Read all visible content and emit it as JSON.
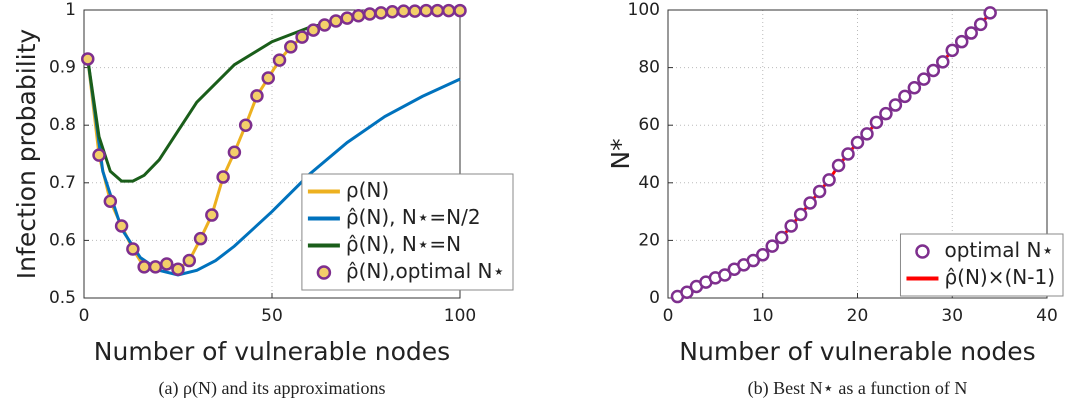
{
  "chart_data": [
    {
      "type": "line",
      "xlabel": "Number of vulnerable nodes",
      "ylabel": "Infection probability",
      "caption": "(a) ρ(N) and its approximations",
      "xlim": [
        0,
        100
      ],
      "ylim": [
        0.5,
        1
      ],
      "xticks": [
        0,
        50,
        100
      ],
      "yticks": [
        0.5,
        0.6,
        0.7,
        0.8,
        0.9,
        1
      ],
      "grid": true,
      "legend": "lower right",
      "series": [
        {
          "name": "ρ(N)",
          "color": "#edb120",
          "style": "line",
          "x": [
            1,
            4,
            7,
            10,
            13,
            16,
            19,
            22,
            25,
            28,
            31,
            34,
            37,
            40,
            43,
            46,
            49,
            52,
            55,
            58,
            61,
            64,
            67,
            70,
            73,
            76,
            79,
            82,
            85,
            88,
            91,
            94,
            97,
            100
          ],
          "values": [
            0.915,
            0.748,
            0.668,
            0.625,
            0.585,
            0.554,
            0.554,
            0.559,
            0.55,
            0.565,
            0.603,
            0.644,
            0.71,
            0.753,
            0.8,
            0.851,
            0.882,
            0.913,
            0.936,
            0.953,
            0.965,
            0.974,
            0.981,
            0.986,
            0.99,
            0.993,
            0.995,
            0.997,
            0.998,
            0.998,
            0.999,
            0.999,
            0.999,
            0.999
          ]
        },
        {
          "name": "ρ̂(N), N⋆=N/2",
          "color": "#0072bd",
          "style": "line",
          "x": [
            1,
            5,
            10,
            15,
            20,
            25,
            30,
            35,
            40,
            50,
            60,
            70,
            80,
            90,
            100
          ],
          "values": [
            0.915,
            0.72,
            0.62,
            0.57,
            0.548,
            0.54,
            0.548,
            0.565,
            0.59,
            0.65,
            0.715,
            0.77,
            0.815,
            0.85,
            0.88
          ]
        },
        {
          "name": "ρ̂(N), N⋆=N",
          "color": "#1a5e1a",
          "style": "line",
          "x": [
            1,
            4,
            7,
            10,
            13,
            16,
            20,
            25,
            30,
            40,
            50,
            60,
            70,
            80,
            90,
            100
          ],
          "values": [
            0.915,
            0.78,
            0.72,
            0.703,
            0.703,
            0.713,
            0.74,
            0.79,
            0.84,
            0.905,
            0.945,
            0.97,
            0.985,
            0.993,
            0.997,
            0.999
          ]
        },
        {
          "name": "ρ̂(N),optimal N⋆",
          "color": "#7e2f8e",
          "style": "markers",
          "marker_fill": "#f3cf6a",
          "x": [
            1,
            4,
            7,
            10,
            13,
            16,
            19,
            22,
            25,
            28,
            31,
            34,
            37,
            40,
            43,
            46,
            49,
            52,
            55,
            58,
            61,
            64,
            67,
            70,
            73,
            76,
            79,
            82,
            85,
            88,
            91,
            94,
            97,
            100
          ],
          "values": [
            0.915,
            0.748,
            0.668,
            0.625,
            0.585,
            0.554,
            0.554,
            0.559,
            0.55,
            0.565,
            0.603,
            0.644,
            0.71,
            0.753,
            0.8,
            0.851,
            0.882,
            0.913,
            0.936,
            0.953,
            0.965,
            0.974,
            0.981,
            0.986,
            0.99,
            0.993,
            0.995,
            0.997,
            0.998,
            0.998,
            0.999,
            0.999,
            0.999,
            0.999
          ]
        }
      ]
    },
    {
      "type": "line",
      "xlabel": "Number of vulnerable nodes",
      "ylabel": "N*",
      "caption": "(b) Best N⋆ as a function of N",
      "xlim": [
        0,
        40
      ],
      "ylim": [
        0,
        100
      ],
      "xticks": [
        0,
        10,
        20,
        30,
        40
      ],
      "yticks": [
        0,
        20,
        40,
        60,
        80,
        100
      ],
      "grid": true,
      "legend": "lower right",
      "series": [
        {
          "name": "optimal N⋆",
          "color": "#7e2f8e",
          "style": "markers",
          "marker_fill": "#ffffff",
          "x": [
            1,
            2,
            3,
            4,
            5,
            6,
            7,
            8,
            9,
            10,
            11,
            12,
            13,
            14,
            15,
            16,
            17,
            18,
            19,
            20,
            21,
            22,
            23,
            24,
            25,
            26,
            27,
            28,
            29,
            30,
            31,
            32,
            33,
            34
          ],
          "values": [
            0.5,
            2,
            4,
            5.5,
            7,
            8,
            10,
            11.5,
            13,
            15,
            18,
            21,
            25,
            29,
            33,
            37,
            41,
            46,
            50,
            54,
            57,
            61,
            64,
            67,
            70,
            73,
            76,
            79,
            82,
            86,
            89,
            92,
            95,
            99
          ]
        },
        {
          "name": "ρ̂(N)×(N-1)",
          "color": "#ff0000",
          "style": "line",
          "x": [
            1,
            2,
            3,
            4,
            5,
            6,
            7,
            8,
            9,
            10,
            11,
            12,
            13,
            14,
            15,
            16,
            17,
            18,
            19,
            20,
            21,
            22,
            23,
            24,
            25,
            26,
            27,
            28,
            29,
            30,
            31,
            32,
            33,
            34
          ],
          "values": [
            0.5,
            2,
            4,
            5.5,
            7,
            8,
            10,
            11.5,
            13,
            15,
            18,
            21,
            25,
            29,
            33,
            37,
            41,
            46,
            50,
            54,
            57,
            61,
            64,
            67,
            70,
            73,
            76,
            79,
            82,
            86,
            89,
            92,
            95,
            99
          ]
        }
      ]
    }
  ]
}
